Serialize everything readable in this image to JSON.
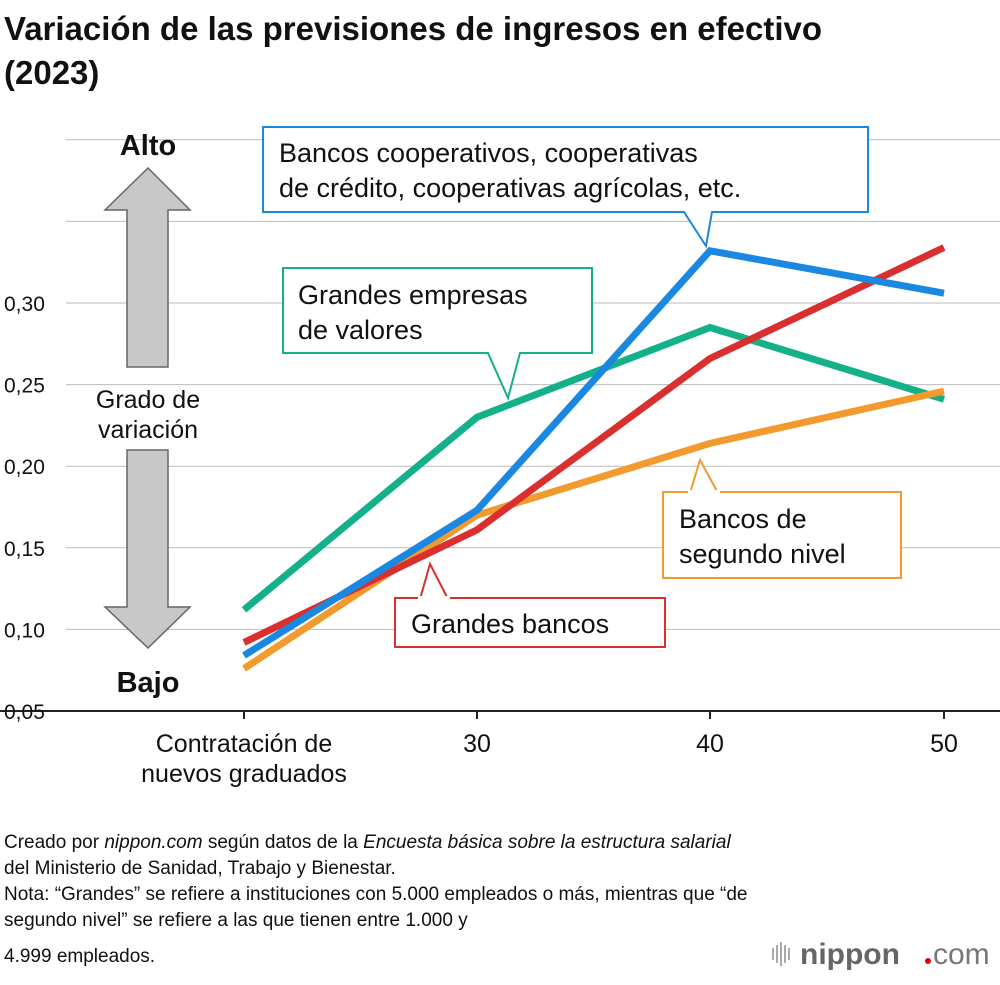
{
  "title_line1": "Variación de las previsiones de ingresos en efectivo",
  "title_line2": "(2023)",
  "scale": {
    "high": "Alto",
    "low": "Bajo",
    "label_line1": "Grado de",
    "label_line2": "variación"
  },
  "chart_data": {
    "type": "line",
    "title": "Variación de las previsiones de ingresos en efectivo (2023)",
    "categories": [
      "Contratación de nuevos graduados",
      "30",
      "40",
      "50"
    ],
    "x_tick_lines": [
      [
        "Contratación de",
        "nuevos graduados"
      ],
      [
        "30"
      ],
      [
        "40"
      ],
      [
        "50"
      ]
    ],
    "y_ticks": [
      "0,05",
      "0,10",
      "0,15",
      "0,20",
      "0,25",
      "0,30"
    ],
    "ylim": [
      0.05,
      0.4
    ],
    "grid": true,
    "series": [
      {
        "name": "Bancos cooperativos, cooperativas de crédito, cooperativas agrícolas, etc.",
        "label_lines": [
          "Bancos cooperativos, cooperativas",
          "de crédito, cooperativas agrícolas, etc."
        ],
        "color": "#1a88e0",
        "values": [
          0.084,
          0.173,
          0.332,
          0.306
        ]
      },
      {
        "name": "Grandes empresas de valores",
        "label_lines": [
          "Grandes empresas",
          "de valores"
        ],
        "color": "#14b08a",
        "values": [
          0.112,
          0.23,
          0.285,
          0.241
        ]
      },
      {
        "name": "Grandes bancos",
        "label_lines": [
          "Grandes bancos"
        ],
        "color": "#d9302f",
        "values": [
          0.092,
          0.161,
          0.266,
          0.334
        ]
      },
      {
        "name": "Bancos de segundo nivel",
        "label_lines": [
          "Bancos de",
          "segundo nivel"
        ],
        "color": "#f29a2e",
        "values": [
          0.076,
          0.17,
          0.214,
          0.246
        ]
      }
    ]
  },
  "notes": {
    "l1a": "Creado por ",
    "l1b": "nippon.com",
    "l1c": " según datos de la ",
    "l1d": "Encuesta básica sobre la estructura salarial",
    "l2": "del Ministerio de Sanidad, Trabajo y Bienestar.",
    "l3": "Nota: “Grandes” se refiere a instituciones con 5.000 empleados o más, mientras que “de",
    "l4": "segundo nivel” se refiere a las que tienen entre 1.000 y",
    "l5": "4.999 empleados."
  },
  "logo": {
    "text": "nippon",
    "suffix": "com",
    "dot_color": "#e60012"
  }
}
